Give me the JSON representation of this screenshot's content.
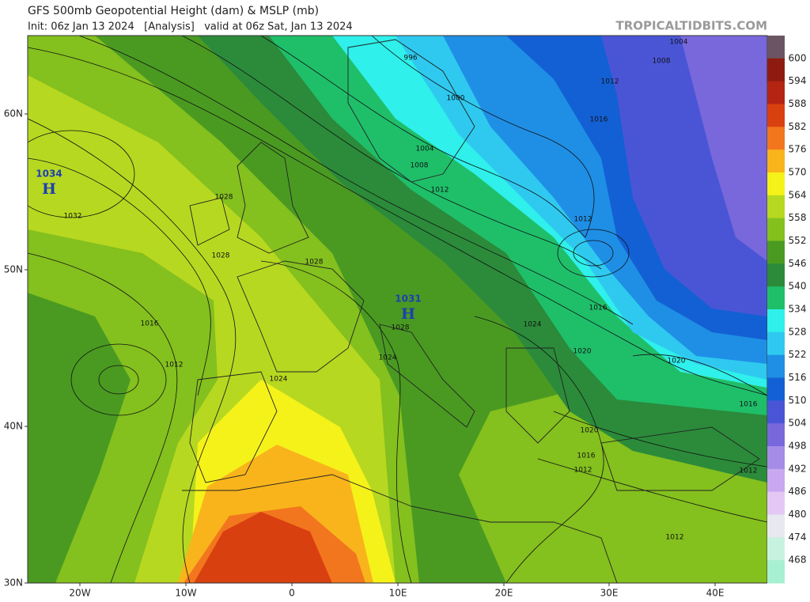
{
  "header": {
    "title": "GFS 500mb Geopotential Height (dam) & MSLP (mb)",
    "subtitle": "Init: 06z Jan 13 2024   [Analysis]   valid at 06z Sat, Jan 13 2024",
    "brand": "TROPICALTIDBITS.COM"
  },
  "axes": {
    "lat": [
      "60N",
      "50N",
      "40N",
      "30N"
    ],
    "lon": [
      "20W",
      "10W",
      "0",
      "10E",
      "20E",
      "30E",
      "40E"
    ]
  },
  "pressure_centers": [
    {
      "value": 1034,
      "label": "H"
    },
    {
      "value": 1031,
      "label": "H"
    }
  ],
  "isobar_labels": [
    1004,
    1008,
    996,
    1012,
    1000,
    1016,
    1004,
    1008,
    1012,
    1012,
    1028,
    1032,
    1028,
    1028,
    1016,
    1012,
    1024,
    1024,
    1028,
    1024,
    1016,
    1020,
    1020,
    1016,
    1020,
    1016,
    1012,
    1012,
    1012
  ],
  "colorbar": [
    {
      "value": 600,
      "color": "#8e1b0f"
    },
    {
      "value": 594,
      "color": "#b32412"
    },
    {
      "value": 588,
      "color": "#d9400f"
    },
    {
      "value": 582,
      "color": "#f2761e"
    },
    {
      "value": 576,
      "color": "#f9b41c"
    },
    {
      "value": 570,
      "color": "#f5f21a"
    },
    {
      "value": 564,
      "color": "#b7d820"
    },
    {
      "value": 558,
      "color": "#84c01e"
    },
    {
      "value": 552,
      "color": "#4a9a22"
    },
    {
      "value": 546,
      "color": "#2b8b3a"
    },
    {
      "value": 540,
      "color": "#1fbf6a"
    },
    {
      "value": 534,
      "color": "#2ff0ea"
    },
    {
      "value": 528,
      "color": "#2fc9f0"
    },
    {
      "value": 522,
      "color": "#1f8fe6"
    },
    {
      "value": 516,
      "color": "#1360d4"
    },
    {
      "value": 510,
      "color": "#4a55d6"
    },
    {
      "value": 504,
      "color": "#7868dc"
    },
    {
      "value": 498,
      "color": "#a58ce6"
    },
    {
      "value": 492,
      "color": "#c8a8ef"
    },
    {
      "value": 486,
      "color": "#e4c8f4"
    },
    {
      "value": 480,
      "color": "#e8e8f0"
    },
    {
      "value": 474,
      "color": "#c8f2e0"
    },
    {
      "value": 468,
      "color": "#a8f0d2"
    }
  ]
}
